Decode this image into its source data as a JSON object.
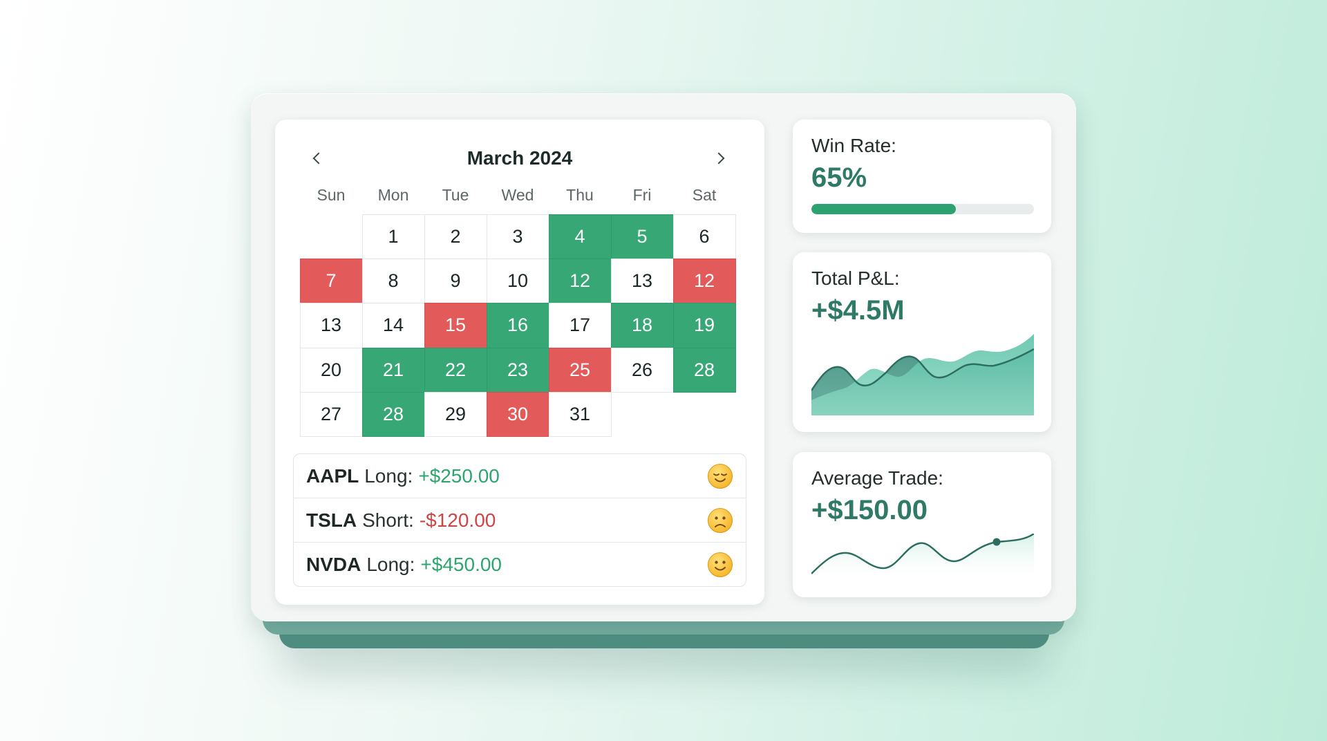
{
  "calendar": {
    "title": "March 2024",
    "weekdays": [
      "Sun",
      "Mon",
      "Tue",
      "Wed",
      "Thu",
      "Fri",
      "Sat"
    ],
    "days": [
      {
        "label": "",
        "status": "empty"
      },
      {
        "label": "1",
        "status": "neutral"
      },
      {
        "label": "2",
        "status": "neutral"
      },
      {
        "label": "3",
        "status": "neutral"
      },
      {
        "label": "4",
        "status": "win"
      },
      {
        "label": "5",
        "status": "win"
      },
      {
        "label": "6",
        "status": "neutral"
      },
      {
        "label": "7",
        "status": "loss"
      },
      {
        "label": "8",
        "status": "neutral"
      },
      {
        "label": "9",
        "status": "neutral"
      },
      {
        "label": "10",
        "status": "neutral"
      },
      {
        "label": "12",
        "status": "win"
      },
      {
        "label": "13",
        "status": "neutral"
      },
      {
        "label": "12",
        "status": "loss"
      },
      {
        "label": "13",
        "status": "neutral"
      },
      {
        "label": "14",
        "status": "neutral"
      },
      {
        "label": "15",
        "status": "loss"
      },
      {
        "label": "16",
        "status": "win"
      },
      {
        "label": "17",
        "status": "neutral"
      },
      {
        "label": "18",
        "status": "win"
      },
      {
        "label": "19",
        "status": "win"
      },
      {
        "label": "20",
        "status": "neutral"
      },
      {
        "label": "21",
        "status": "win"
      },
      {
        "label": "22",
        "status": "win"
      },
      {
        "label": "23",
        "status": "win"
      },
      {
        "label": "25",
        "status": "loss"
      },
      {
        "label": "26",
        "status": "neutral"
      },
      {
        "label": "28",
        "status": "win"
      },
      {
        "label": "27",
        "status": "neutral"
      },
      {
        "label": "28",
        "status": "win"
      },
      {
        "label": "29",
        "status": "neutral"
      },
      {
        "label": "30",
        "status": "loss"
      },
      {
        "label": "31",
        "status": "neutral"
      }
    ]
  },
  "trades": [
    {
      "ticker": "AAPL",
      "side": "Long:",
      "amount": "+$250.00",
      "direction": "pos",
      "emoji": "relieved-face-icon"
    },
    {
      "ticker": "TSLA",
      "side": "Short:",
      "amount": "-$120.00",
      "direction": "neg",
      "emoji": "frowning-face-icon"
    },
    {
      "ticker": "NVDA",
      "side": "Long:",
      "amount": "+$450.00",
      "direction": "pos",
      "emoji": "smiling-face-icon"
    }
  ],
  "stats": {
    "win_rate": {
      "label": "Win Rate:",
      "value": "65%",
      "fraction": 0.65
    },
    "total_pnl": {
      "label": "Total P&L:",
      "value": "+$4.5M"
    },
    "avg_trade": {
      "label": "Average Trade:",
      "value": "+$150.00"
    }
  },
  "colors": {
    "win": "#36a775",
    "loss": "#e35a5b",
    "accent": "#2f7a66",
    "progress": "#2ea173"
  }
}
